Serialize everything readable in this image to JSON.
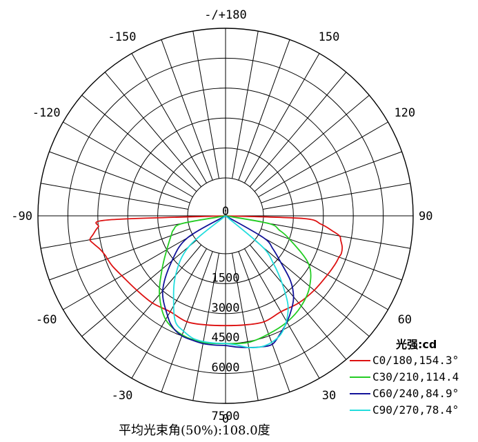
{
  "chart_data": {
    "type": "polar",
    "legend_title": "光强:cd",
    "legend_position": "bottom-right",
    "footer": "平均光束角(50%):108.0度",
    "radial_ticks": [
      "0",
      "1500",
      "3000",
      "4500",
      "6000",
      "7500"
    ],
    "radial_max": 7500,
    "angle_labels": [
      {
        "angle": 180,
        "text": "-/+180"
      },
      {
        "angle": 150,
        "text": "150"
      },
      {
        "angle": -150,
        "text": "-150"
      },
      {
        "angle": 120,
        "text": "120"
      },
      {
        "angle": -120,
        "text": "-120"
      },
      {
        "angle": 90,
        "text": "90"
      },
      {
        "angle": -90,
        "text": "-90"
      },
      {
        "angle": 60,
        "text": "60"
      },
      {
        "angle": -60,
        "text": "-60"
      },
      {
        "angle": 30,
        "text": "30"
      },
      {
        "angle": -30,
        "text": "-30"
      },
      {
        "angle": 0,
        "text": "0"
      }
    ],
    "grid": true,
    "series": [
      {
        "name": "C0/180,154.3°",
        "color": "#dd1111",
        "angles": [
          -88,
          -85,
          -82,
          -80,
          -78,
          -75,
          -72,
          -70,
          -66,
          -60,
          -50,
          -40,
          -30,
          -20,
          -10,
          0,
          10,
          20,
          30,
          40,
          50,
          60,
          66,
          70,
          72,
          75,
          78,
          80,
          82,
          85,
          88
        ],
        "values": [
          4000,
          4500,
          4800,
          5000,
          4850,
          4600,
          4450,
          4400,
          4300,
          4100,
          3900,
          3800,
          3650,
          3750,
          3650,
          3600,
          3650,
          3750,
          3650,
          3800,
          3900,
          4000,
          4100,
          4150,
          4200,
          4150,
          4000,
          3900,
          3500,
          2900,
          2000
        ]
      },
      {
        "name": "C30/210,114.4",
        "color": "#22cc22",
        "angles": [
          -80,
          -75,
          -70,
          -60,
          -50,
          -40,
          -30,
          -20,
          -10,
          0,
          10,
          20,
          30,
          40,
          50,
          60,
          70,
          75,
          80
        ],
        "values": [
          300,
          800,
          1000,
          1500,
          2250,
          3250,
          4100,
          4450,
          4550,
          4500,
          4550,
          4400,
          4250,
          4000,
          3600,
          2900,
          1500,
          900,
          300
        ]
      },
      {
        "name": "C60/240,84.9°",
        "color": "#111199",
        "angles": [
          -60,
          -50,
          -40,
          -30,
          -25,
          -20,
          -15,
          -10,
          -5,
          0,
          5,
          10,
          15,
          20,
          25,
          30,
          35,
          40,
          45,
          50,
          55,
          60
        ],
        "values": [
          300,
          1600,
          3000,
          3900,
          4300,
          4500,
          4550,
          4600,
          4600,
          4600,
          4700,
          4800,
          4900,
          4950,
          4600,
          4250,
          3850,
          3400,
          2700,
          1700,
          1000,
          300
        ]
      },
      {
        "name": "C90/270,78.4°",
        "color": "#22dddd",
        "angles": [
          -50,
          -40,
          -30,
          -25,
          -20,
          -15,
          -10,
          -5,
          0,
          5,
          10,
          15,
          20,
          25,
          30,
          35,
          40,
          45,
          50
        ],
        "values": [
          500,
          2000,
          3300,
          4000,
          4250,
          4450,
          4500,
          4500,
          4500,
          4600,
          4800,
          4900,
          4850,
          4650,
          4200,
          3550,
          2500,
          1500,
          500
        ]
      }
    ]
  }
}
